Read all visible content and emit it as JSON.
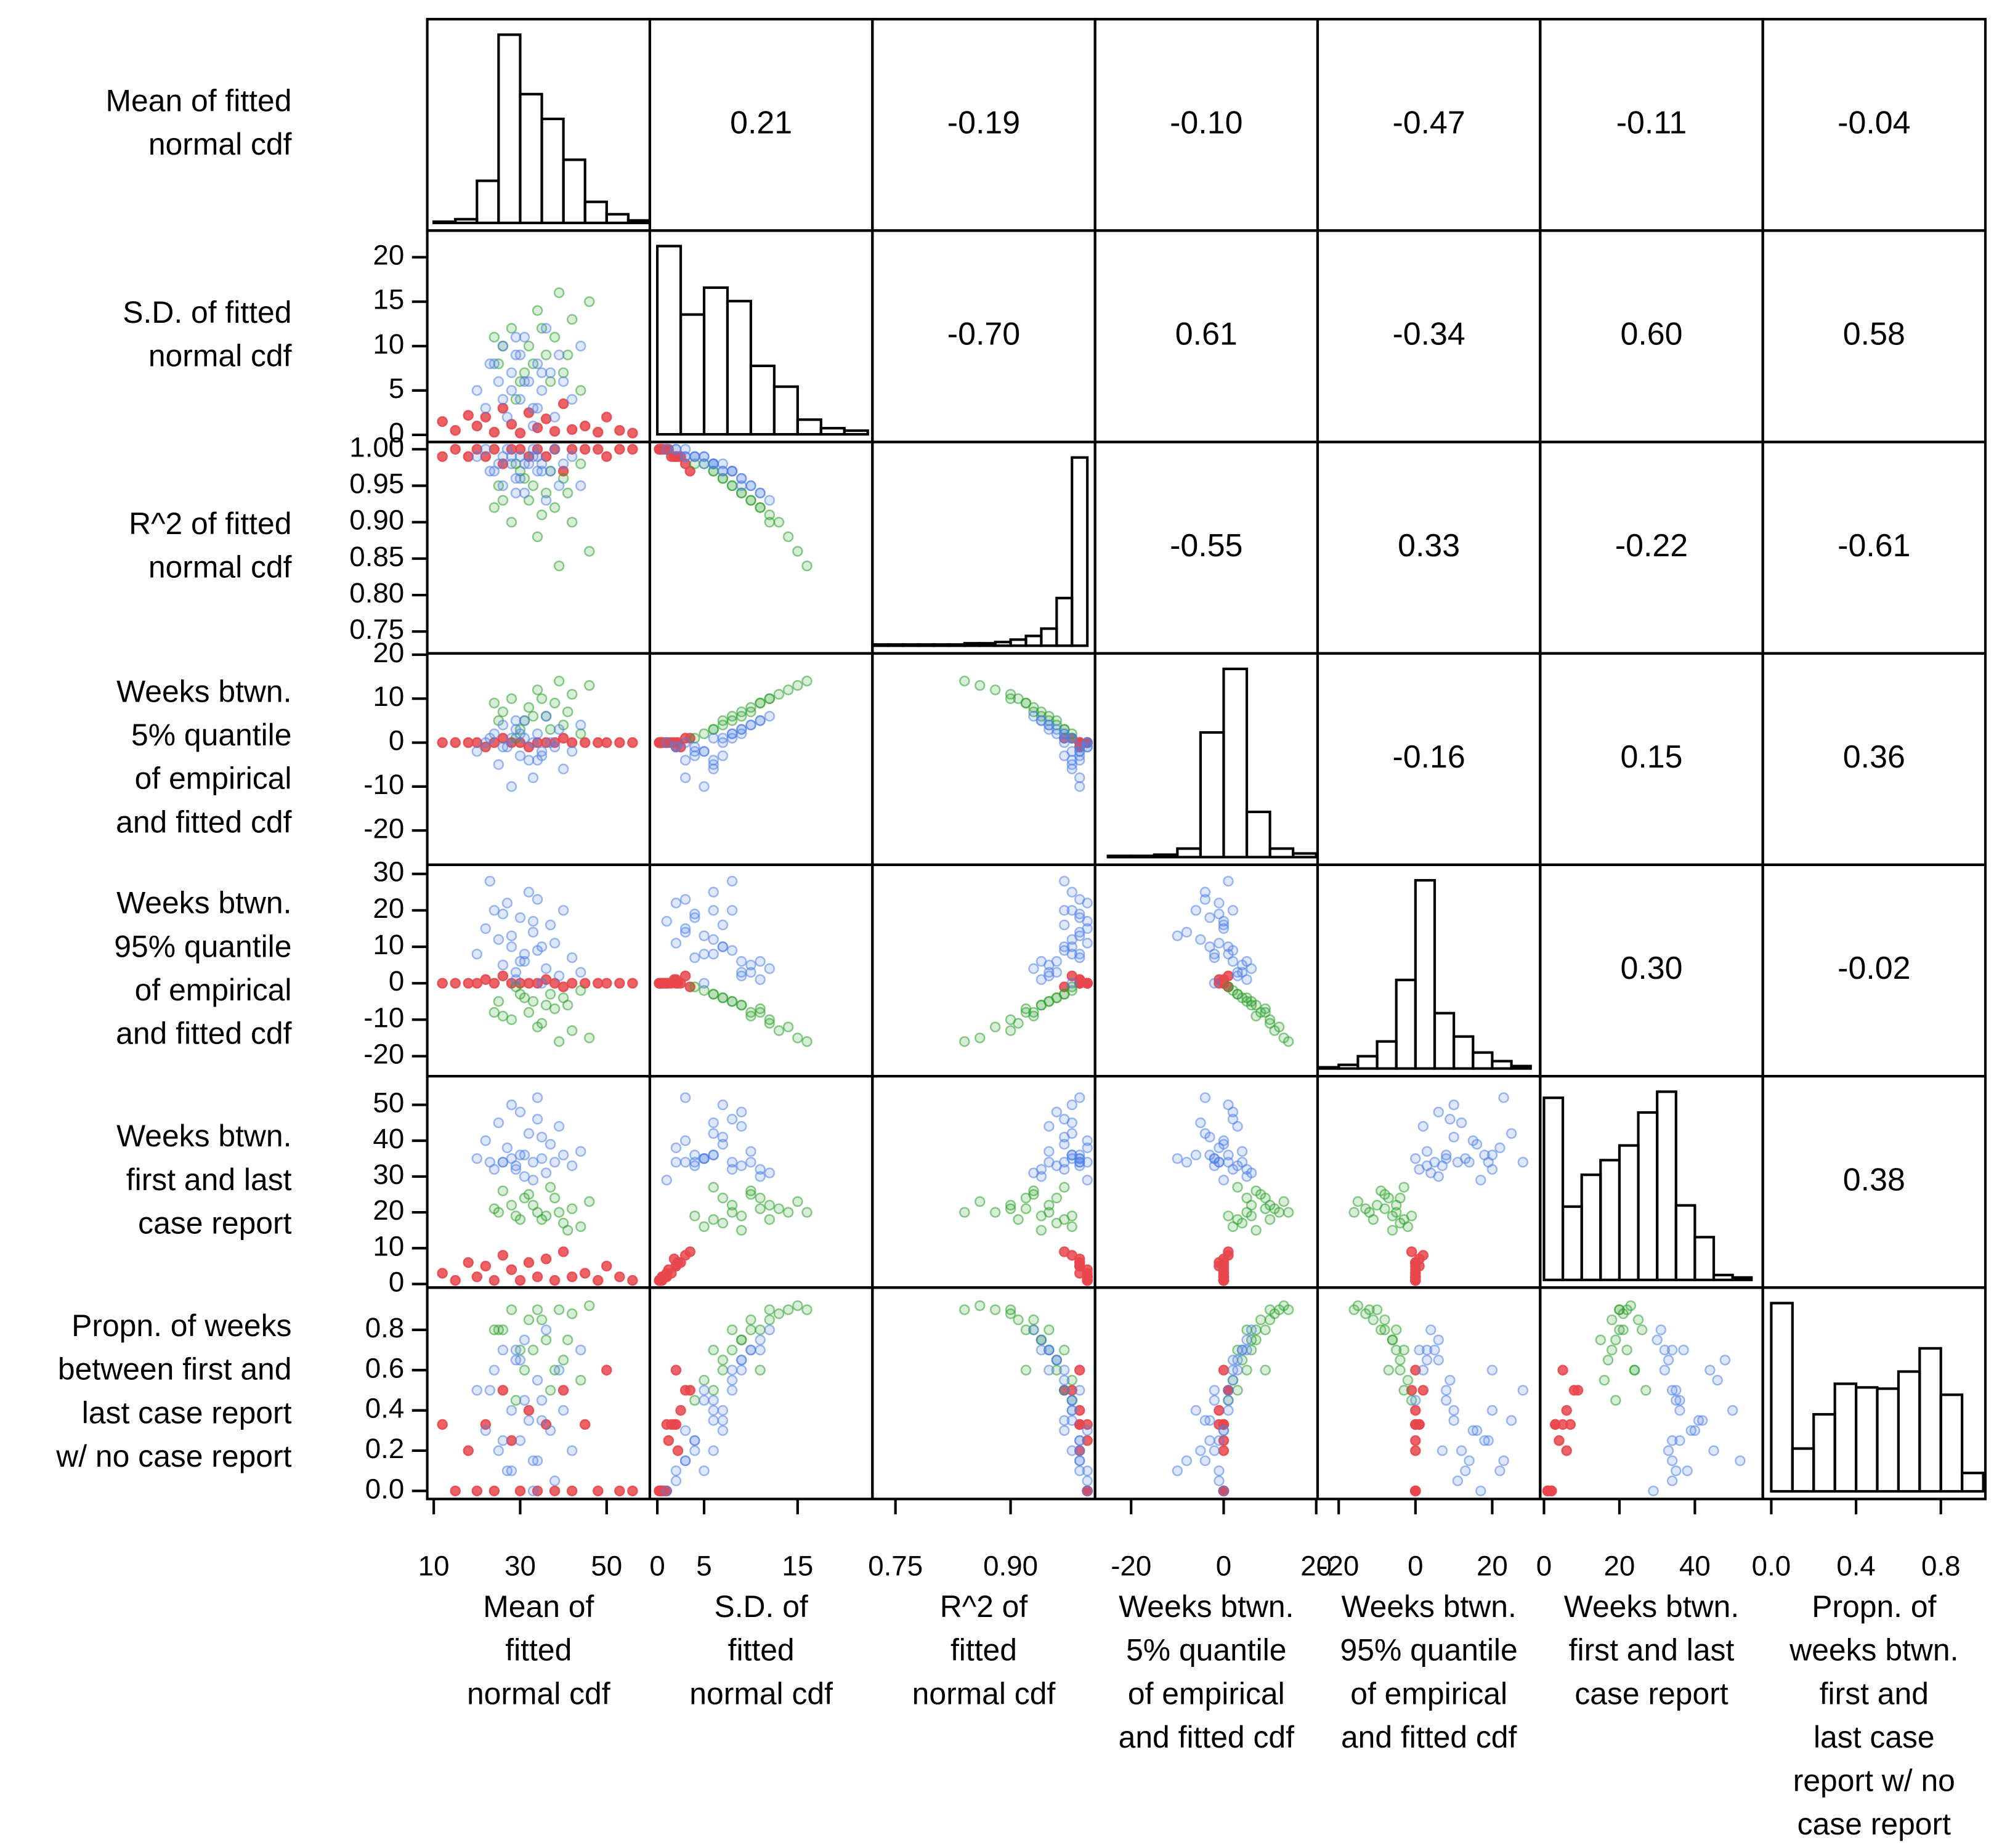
{
  "chart_data": {
    "type": "scatter_matrix",
    "variables": [
      {
        "row_label": [
          "Mean of fitted",
          "normal cdf"
        ],
        "col_label": [
          "Mean of",
          "fitted",
          "normal cdf"
        ],
        "lim": [
          8.5,
          60
        ],
        "xticks": [
          10,
          30,
          50
        ],
        "bins": [
          10,
          15,
          20,
          25,
          30,
          35,
          40,
          45,
          50,
          55,
          60
        ],
        "counts": [
          1,
          3,
          34,
          152,
          104,
          84,
          51,
          17,
          7,
          2
        ]
      },
      {
        "row_label": [
          "S.D. of fitted",
          "normal cdf"
        ],
        "col_label": [
          "S.D. of",
          "fitted",
          "normal cdf"
        ],
        "lim": [
          -0.8,
          23
        ],
        "xticks": [
          0,
          5,
          15
        ],
        "yticks": [
          0,
          5,
          10,
          15,
          20
        ],
        "bins": [
          0,
          2.5,
          5,
          7.5,
          10,
          12.5,
          15,
          17.5,
          20,
          22.5
        ],
        "counts": [
          154,
          98,
          120,
          109,
          56,
          39,
          12,
          5,
          3
        ]
      },
      {
        "row_label": [
          "R^2 of fitted",
          "normal cdf"
        ],
        "col_label": [
          "R^2 of",
          "fitted",
          "normal cdf"
        ],
        "lim": [
          0.72,
          1.01
        ],
        "xticks": [
          0.75,
          {
            "value": 0.9,
            "label": "0.90"
          }
        ],
        "yticks": [
          0.75,
          {
            "value": 0.8,
            "label": "0.80"
          },
          0.85,
          {
            "value": 0.9,
            "label": "0.90"
          },
          0.95,
          {
            "value": 1,
            "label": "1.00"
          }
        ],
        "bins": [
          0.72,
          0.74,
          0.76,
          0.78,
          0.8,
          0.82,
          0.84,
          0.86,
          0.88,
          0.9,
          0.92,
          0.94,
          0.96,
          0.98,
          1.0
        ],
        "counts": [
          1,
          1,
          1,
          1,
          1,
          1,
          2,
          2,
          3,
          5,
          8,
          14,
          39,
          154
        ]
      },
      {
        "row_label": [
          "Weeks btwn.",
          "5% quantile",
          "of empirical",
          "and fitted cdf"
        ],
        "col_label": [
          "Weeks btwn.",
          "5% quantile",
          "of empirical",
          "and fitted cdf"
        ],
        "lim": [
          -27.8,
          20.3
        ],
        "xticks": [
          -20,
          0,
          20
        ],
        "yticks": [
          -20,
          -10,
          0,
          10,
          20
        ],
        "bins": [
          -25,
          -20,
          -15,
          -10,
          -5,
          0,
          5,
          10,
          15,
          20
        ],
        "counts": [
          1,
          1,
          2,
          7,
          102,
          154,
          37,
          7,
          3
        ]
      },
      {
        "row_label": [
          "Weeks btwn.",
          "95% quantile",
          "of empirical",
          "and fitted cdf"
        ],
        "col_label": [
          "Weeks btwn.",
          "95% quantile",
          "of empirical",
          "and fitted cdf"
        ],
        "lim": [
          -25.5,
          32.5
        ],
        "xticks": [
          -20,
          0,
          20
        ],
        "yticks": [
          -20,
          -10,
          0,
          10,
          20,
          30
        ],
        "bins": [
          -25,
          -20,
          -15,
          -10,
          -5,
          0,
          5,
          10,
          15,
          20,
          25,
          30
        ],
        "counts": [
          1,
          3,
          10,
          22,
          72,
          153,
          45,
          26,
          13,
          6,
          2
        ]
      },
      {
        "row_label": [
          "Weeks btwn.",
          "first and last",
          "case report"
        ],
        "col_label": [
          "Weeks btwn.",
          "first and last",
          "case report"
        ],
        "lim": [
          -1,
          58
        ],
        "xticks": [
          0,
          20,
          40
        ],
        "yticks": [
          0,
          10,
          20,
          30,
          40,
          50
        ],
        "bins": [
          0,
          5,
          10,
          15,
          20,
          25,
          30,
          35,
          40,
          45,
          50,
          55
        ],
        "counts": [
          149,
          60,
          86,
          98,
          110,
          137,
          154,
          61,
          35,
          4,
          2
        ]
      },
      {
        "row_label": [
          "Propn. of weeks",
          "between first and",
          "last case report",
          "w/ no case report"
        ],
        "col_label": [
          "Propn. of",
          "weeks btwn.",
          "first and",
          "last case",
          "report w/ no",
          "case report"
        ],
        "lim": [
          -0.04,
          1.01
        ],
        "xticks": [
          {
            "value": 0,
            "label": "0.0"
          },
          0.4,
          0.8
        ],
        "yticks": [
          {
            "value": 0,
            "label": "0.0"
          },
          0.2,
          0.4,
          0.6,
          0.8
        ],
        "bins": [
          0,
          0.1,
          0.2,
          0.3,
          0.4,
          0.5,
          0.6,
          0.7,
          0.8,
          0.9,
          1.0
        ],
        "counts": [
          154,
          35,
          63,
          88,
          85,
          84,
          98,
          117,
          79,
          15
        ]
      }
    ],
    "correlations": [
      [
        null,
        0.21,
        -0.19,
        {
          "value": -0.1,
          "label": "-0.10"
        },
        -0.47,
        -0.11,
        -0.04
      ],
      [
        null,
        null,
        {
          "value": -0.7,
          "label": "-0.70"
        },
        0.61,
        -0.34,
        {
          "value": 0.6,
          "label": "0.60"
        },
        0.58
      ],
      [
        null,
        null,
        null,
        -0.55,
        0.33,
        -0.22,
        -0.61
      ],
      [
        null,
        null,
        null,
        null,
        -0.16,
        0.15,
        0.36
      ],
      [
        null,
        null,
        null,
        null,
        null,
        {
          "value": 0.3,
          "label": "0.30"
        },
        -0.02
      ],
      [
        null,
        null,
        null,
        null,
        null,
        null,
        0.38
      ],
      [
        null,
        null,
        null,
        null,
        null,
        null,
        null
      ]
    ],
    "groups": [
      {
        "color": "#e8474c",
        "points": [
          [
            12,
            1.5,
            0.99,
            0,
            0,
            3,
            0.33
          ],
          [
            15,
            0.5,
            1.0,
            0,
            0,
            1,
            0
          ],
          [
            20,
            1,
            1.0,
            0,
            0,
            2,
            0
          ],
          [
            22,
            2,
            0.99,
            -1,
            1,
            5,
            0.33
          ],
          [
            24,
            0.3,
            1.0,
            0,
            0,
            1,
            0
          ],
          [
            26,
            3,
            0.98,
            1,
            2,
            8,
            0.5
          ],
          [
            28,
            1.2,
            1.0,
            0,
            0,
            4,
            0.25
          ],
          [
            30,
            0.2,
            1.0,
            0,
            0,
            1,
            0
          ],
          [
            32,
            2.5,
            0.99,
            -1,
            0,
            6,
            0.4
          ],
          [
            34,
            0.8,
            1.0,
            0,
            0,
            2,
            0
          ],
          [
            36,
            1.8,
            0.99,
            0,
            1,
            7,
            0.33
          ],
          [
            38,
            0.4,
            1.0,
            0,
            0,
            1,
            0
          ],
          [
            40,
            3.5,
            0.97,
            1,
            -1,
            9,
            0.5
          ],
          [
            42,
            0.6,
            1.0,
            0,
            0,
            2,
            0
          ],
          [
            45,
            1,
            1.0,
            0,
            0,
            3,
            0.33
          ],
          [
            48,
            0.3,
            1.0,
            0,
            0,
            1,
            0
          ],
          [
            50,
            2,
            0.99,
            0,
            0,
            5,
            0.6
          ],
          [
            53,
            0.5,
            1.0,
            0,
            0,
            2,
            0
          ],
          [
            56,
            0.2,
            1.0,
            0,
            0,
            1,
            0
          ],
          [
            18,
            2.2,
            0.99,
            0,
            0,
            6,
            0.2
          ]
        ]
      },
      {
        "color": "#2ca02c",
        "points": [
          [
            25,
            8,
            0.95,
            5,
            -5,
            20,
            0.8
          ],
          [
            28,
            12,
            0.9,
            10,
            -10,
            22,
            0.9
          ],
          [
            30,
            6,
            0.97,
            3,
            -3,
            18,
            0.7
          ],
          [
            32,
            10,
            0.93,
            8,
            -8,
            25,
            0.85
          ],
          [
            34,
            14,
            0.88,
            12,
            -12,
            20,
            0.9
          ],
          [
            36,
            9,
            0.94,
            6,
            -6,
            19,
            0.75
          ],
          [
            38,
            11,
            0.92,
            9,
            -7,
            24,
            0.6
          ],
          [
            40,
            7,
            0.96,
            4,
            -4,
            17,
            0.65
          ],
          [
            42,
            13,
            0.9,
            11,
            -13,
            21,
            0.88
          ],
          [
            44,
            5,
            0.98,
            2,
            -2,
            16,
            0.55
          ],
          [
            46,
            15,
            0.86,
            13,
            -15,
            23,
            0.92
          ],
          [
            26,
            10,
            0.93,
            7,
            -9,
            26,
            0.8
          ],
          [
            29,
            4,
            0.98,
            1,
            -1,
            19,
            0.45
          ],
          [
            33,
            8,
            0.95,
            6,
            -5,
            22,
            0.7
          ],
          [
            35,
            12,
            0.91,
            10,
            -11,
            18,
            0.85
          ],
          [
            37,
            6,
            0.97,
            3,
            -3,
            27,
            0.5
          ],
          [
            39,
            16,
            0.84,
            14,
            -16,
            20,
            0.9
          ],
          [
            41,
            9,
            0.94,
            7,
            -6,
            15,
            0.75
          ],
          [
            24,
            11,
            0.92,
            9,
            -8,
            21,
            0.8
          ],
          [
            31,
            7,
            0.96,
            5,
            -4,
            24,
            0.6
          ]
        ]
      },
      {
        "color": "#4f7fe8",
        "points": [
          [
            20,
            5,
            0.99,
            -2,
            8,
            35,
            0.5
          ],
          [
            22,
            3,
            1.0,
            0,
            15,
            40,
            0.3
          ],
          [
            24,
            8,
            0.97,
            2,
            20,
            32,
            0.6
          ],
          [
            25,
            6,
            0.98,
            -5,
            12,
            45,
            0.2
          ],
          [
            26,
            10,
            0.95,
            4,
            5,
            34,
            0.7
          ],
          [
            27,
            2,
            1.0,
            -1,
            22,
            38,
            0.1
          ],
          [
            28,
            7,
            0.98,
            1,
            10,
            50,
            0.4
          ],
          [
            29,
            9,
            0.96,
            3,
            3,
            33,
            0.65
          ],
          [
            30,
            4,
            0.99,
            -3,
            18,
            36,
            0.25
          ],
          [
            31,
            11,
            0.94,
            5,
            6,
            30,
            0.75
          ],
          [
            32,
            6,
            0.98,
            -4,
            25,
            42,
            0.35
          ],
          [
            33,
            3,
            0.99,
            -8,
            14,
            34,
            0.15
          ],
          [
            34,
            8,
            0.97,
            2,
            9,
            46,
            0.55
          ],
          [
            35,
            5,
            0.98,
            -2,
            0,
            35,
            0.45
          ],
          [
            36,
            12,
            0.93,
            6,
            4,
            31,
            0.8
          ],
          [
            37,
            7,
            0.97,
            0,
            16,
            39,
            0.3
          ],
          [
            38,
            2,
            1.0,
            -1,
            11,
            34,
            0.05
          ],
          [
            39,
            9,
            0.95,
            3,
            2,
            44,
            0.6
          ],
          [
            40,
            6,
            0.98,
            -6,
            20,
            36,
            0.4
          ],
          [
            42,
            4,
            0.99,
            -2,
            7,
            33,
            0.2
          ],
          [
            44,
            10,
            0.95,
            4,
            3,
            37,
            0.7
          ],
          [
            23,
            8,
            0.97,
            1,
            28,
            34,
            0.5
          ],
          [
            28,
            5,
            0.99,
            -10,
            13,
            35,
            0.1
          ],
          [
            30,
            9,
            0.96,
            2,
            6,
            48,
            0.65
          ],
          [
            33,
            1,
            1.0,
            0,
            17,
            29,
            0.0
          ],
          [
            35,
            7,
            0.97,
            -3,
            10,
            41,
            0.35
          ],
          [
            26,
            4,
            0.99,
            -1,
            19,
            34,
            0.25
          ],
          [
            31,
            6,
            0.98,
            1,
            8,
            36,
            0.45
          ],
          [
            34,
            3,
            0.99,
            -4,
            23,
            52,
            0.15
          ],
          [
            29,
            11,
            0.94,
            5,
            1,
            32,
            0.7
          ]
        ]
      }
    ]
  }
}
